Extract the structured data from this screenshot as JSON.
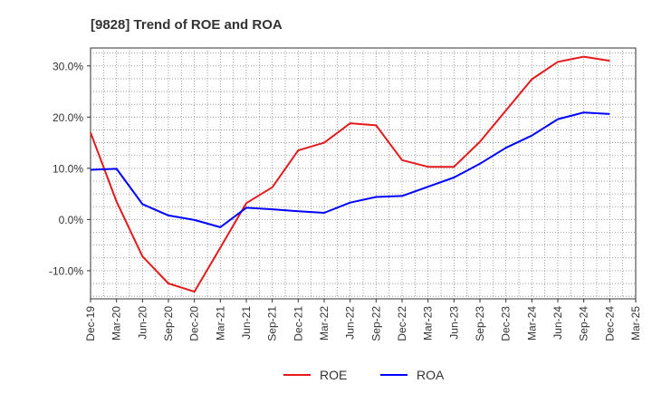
{
  "chart_data": {
    "type": "line",
    "title": "[9828]  Trend of ROE and ROA",
    "xlabel": "",
    "ylabel": "",
    "x": [
      "Dec-19",
      "Mar-20",
      "Jun-20",
      "Sep-20",
      "Dec-20",
      "Mar-21",
      "Jun-21",
      "Sep-21",
      "Dec-21",
      "Mar-22",
      "Jun-22",
      "Sep-22",
      "Dec-22",
      "Mar-23",
      "Jun-23",
      "Sep-23",
      "Dec-23",
      "Mar-24",
      "Jun-24",
      "Sep-24",
      "Dec-24",
      "Mar-25"
    ],
    "ylim": [
      -15.5,
      33.5
    ],
    "yticks": [
      -10,
      0,
      10,
      20,
      30
    ],
    "ytick_labels": [
      "-10.0%",
      "0.0%",
      "10.0%",
      "20.0%",
      "30.0%"
    ],
    "grid": true,
    "legend_position": "bottom",
    "series": [
      {
        "name": "ROE",
        "color": "#e41a1c",
        "values": [
          17.0,
          3.5,
          -7.2,
          -12.5,
          -14.1,
          -5.5,
          3.2,
          6.3,
          13.5,
          15.0,
          18.8,
          18.4,
          11.6,
          10.3,
          10.3,
          15.2,
          21.3,
          27.4,
          30.8,
          31.8,
          31.0,
          null
        ]
      },
      {
        "name": "ROA",
        "color": "#0000ff",
        "values": [
          9.7,
          9.9,
          3.0,
          0.8,
          -0.1,
          -1.5,
          2.3,
          2.0,
          1.6,
          1.3,
          3.3,
          4.4,
          4.6,
          6.4,
          8.2,
          10.9,
          14.0,
          16.4,
          19.6,
          20.9,
          20.6,
          null
        ]
      }
    ]
  }
}
